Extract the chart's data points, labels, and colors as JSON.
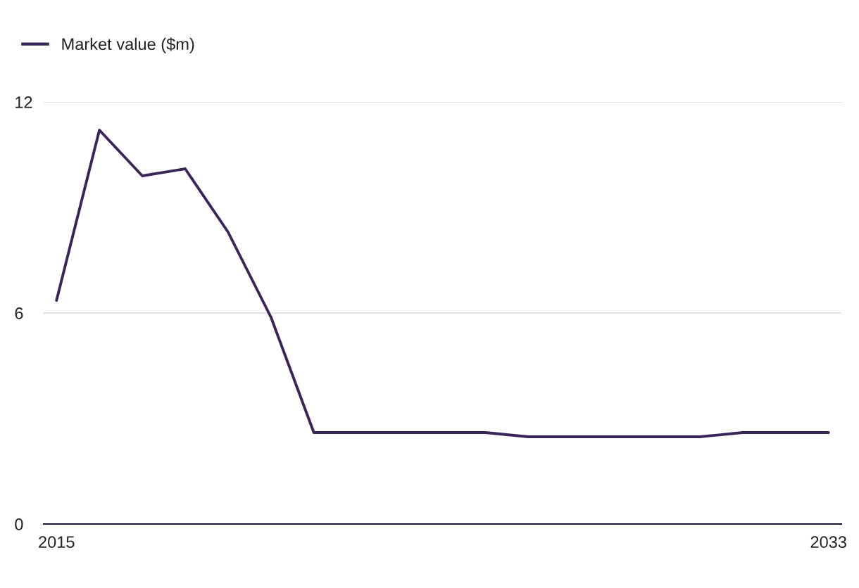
{
  "chart_data": {
    "type": "line",
    "x": [
      2015,
      2016,
      2017,
      2018,
      2019,
      2020,
      2021,
      2022,
      2023,
      2024,
      2025,
      2026,
      2027,
      2028,
      2029,
      2030,
      2031,
      2032,
      2033
    ],
    "series": [
      {
        "name": "Market value ($m)",
        "color": "#3b2558",
        "values": [
          6.36,
          11.2,
          9.9,
          10.1,
          8.3,
          5.88,
          2.6,
          2.6,
          2.6,
          2.6,
          2.6,
          2.48,
          2.48,
          2.48,
          2.48,
          2.48,
          2.6,
          2.6,
          2.6
        ]
      }
    ],
    "xlim": [
      2014.7,
      2033.3
    ],
    "xticks": [
      2015,
      2033
    ],
    "ylim": [
      0,
      12
    ],
    "yticks": [
      0,
      6,
      12
    ],
    "grid": "y",
    "legend": "top left",
    "marker": "none",
    "line_style": "solid"
  }
}
